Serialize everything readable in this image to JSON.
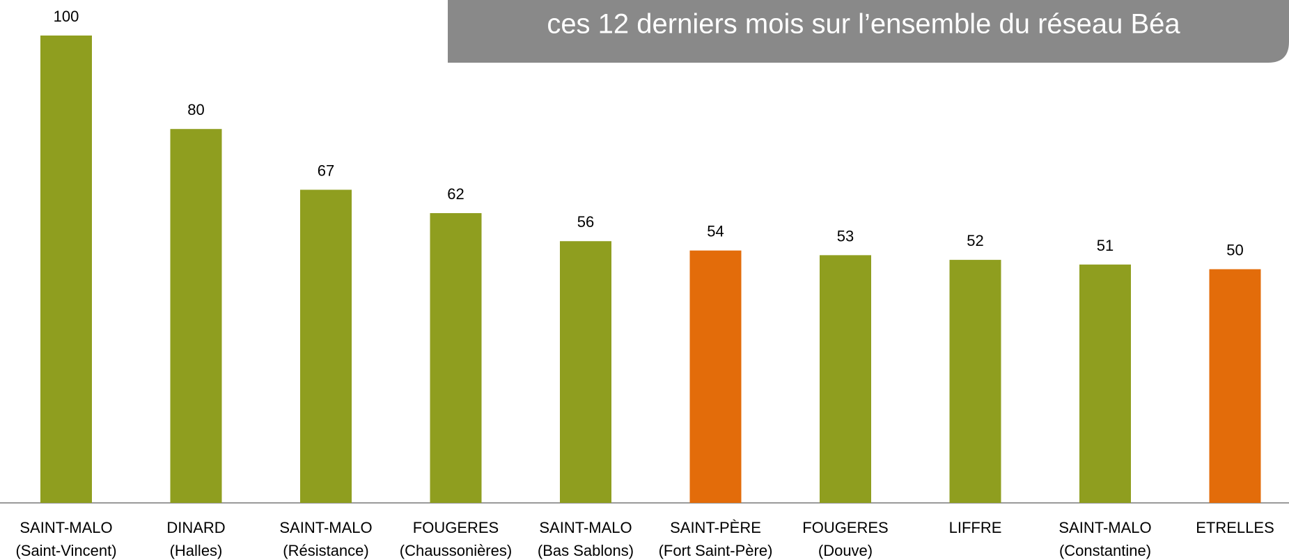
{
  "chart_data": {
    "type": "bar",
    "title": "ces 12 derniers mois sur l’ensemble du réseau Béa",
    "categories": [
      [
        "SAINT-MALO",
        "(Saint-Vincent)"
      ],
      [
        "DINARD",
        "(Halles)"
      ],
      [
        "SAINT-MALO",
        "(Résistance)"
      ],
      [
        "FOUGERES",
        "(Chaussonières)"
      ],
      [
        "SAINT-MALO",
        "(Bas Sablons)"
      ],
      [
        "SAINT-PÈRE",
        "(Fort Saint-Père)"
      ],
      [
        "FOUGERES",
        "(Douve)"
      ],
      [
        "LIFFRE"
      ],
      [
        "SAINT-MALO",
        "(Constantine)"
      ],
      [
        "ETRELLES"
      ]
    ],
    "values": [
      100,
      80,
      67,
      62,
      56,
      54,
      53,
      52,
      51,
      50
    ],
    "colors": [
      "#8f9e1f",
      "#8f9e1f",
      "#8f9e1f",
      "#8f9e1f",
      "#8f9e1f",
      "#e36c0a",
      "#8f9e1f",
      "#8f9e1f",
      "#8f9e1f",
      "#e36c0a"
    ],
    "ylim": [
      0,
      100
    ]
  }
}
